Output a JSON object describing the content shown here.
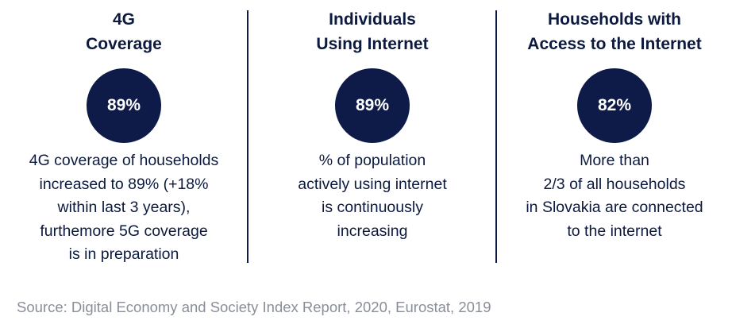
{
  "columns": [
    {
      "title": "4G\nCoverage",
      "value": "89%",
      "description": "4G coverage of households\nincreased to 89% (+18%\nwithin last 3 years),\nfurthemore 5G coverage\nis in preparation"
    },
    {
      "title": "Individuals\nUsing Internet",
      "value": "89%",
      "description": "% of population\nactively using internet\nis continuously\nincreasing"
    },
    {
      "title": "Households with\nAccess to the Internet",
      "value": "82%",
      "description": "More than\n2/3 of all households\nin Slovakia are connected\nto the internet"
    }
  ],
  "source": "Source: Digital Economy and Society Index Report, 2020, Eurostat, 2019",
  "colors": {
    "navy": "#0e1b48",
    "text": "#0d1a3f",
    "source_gray": "#8a8e99"
  }
}
